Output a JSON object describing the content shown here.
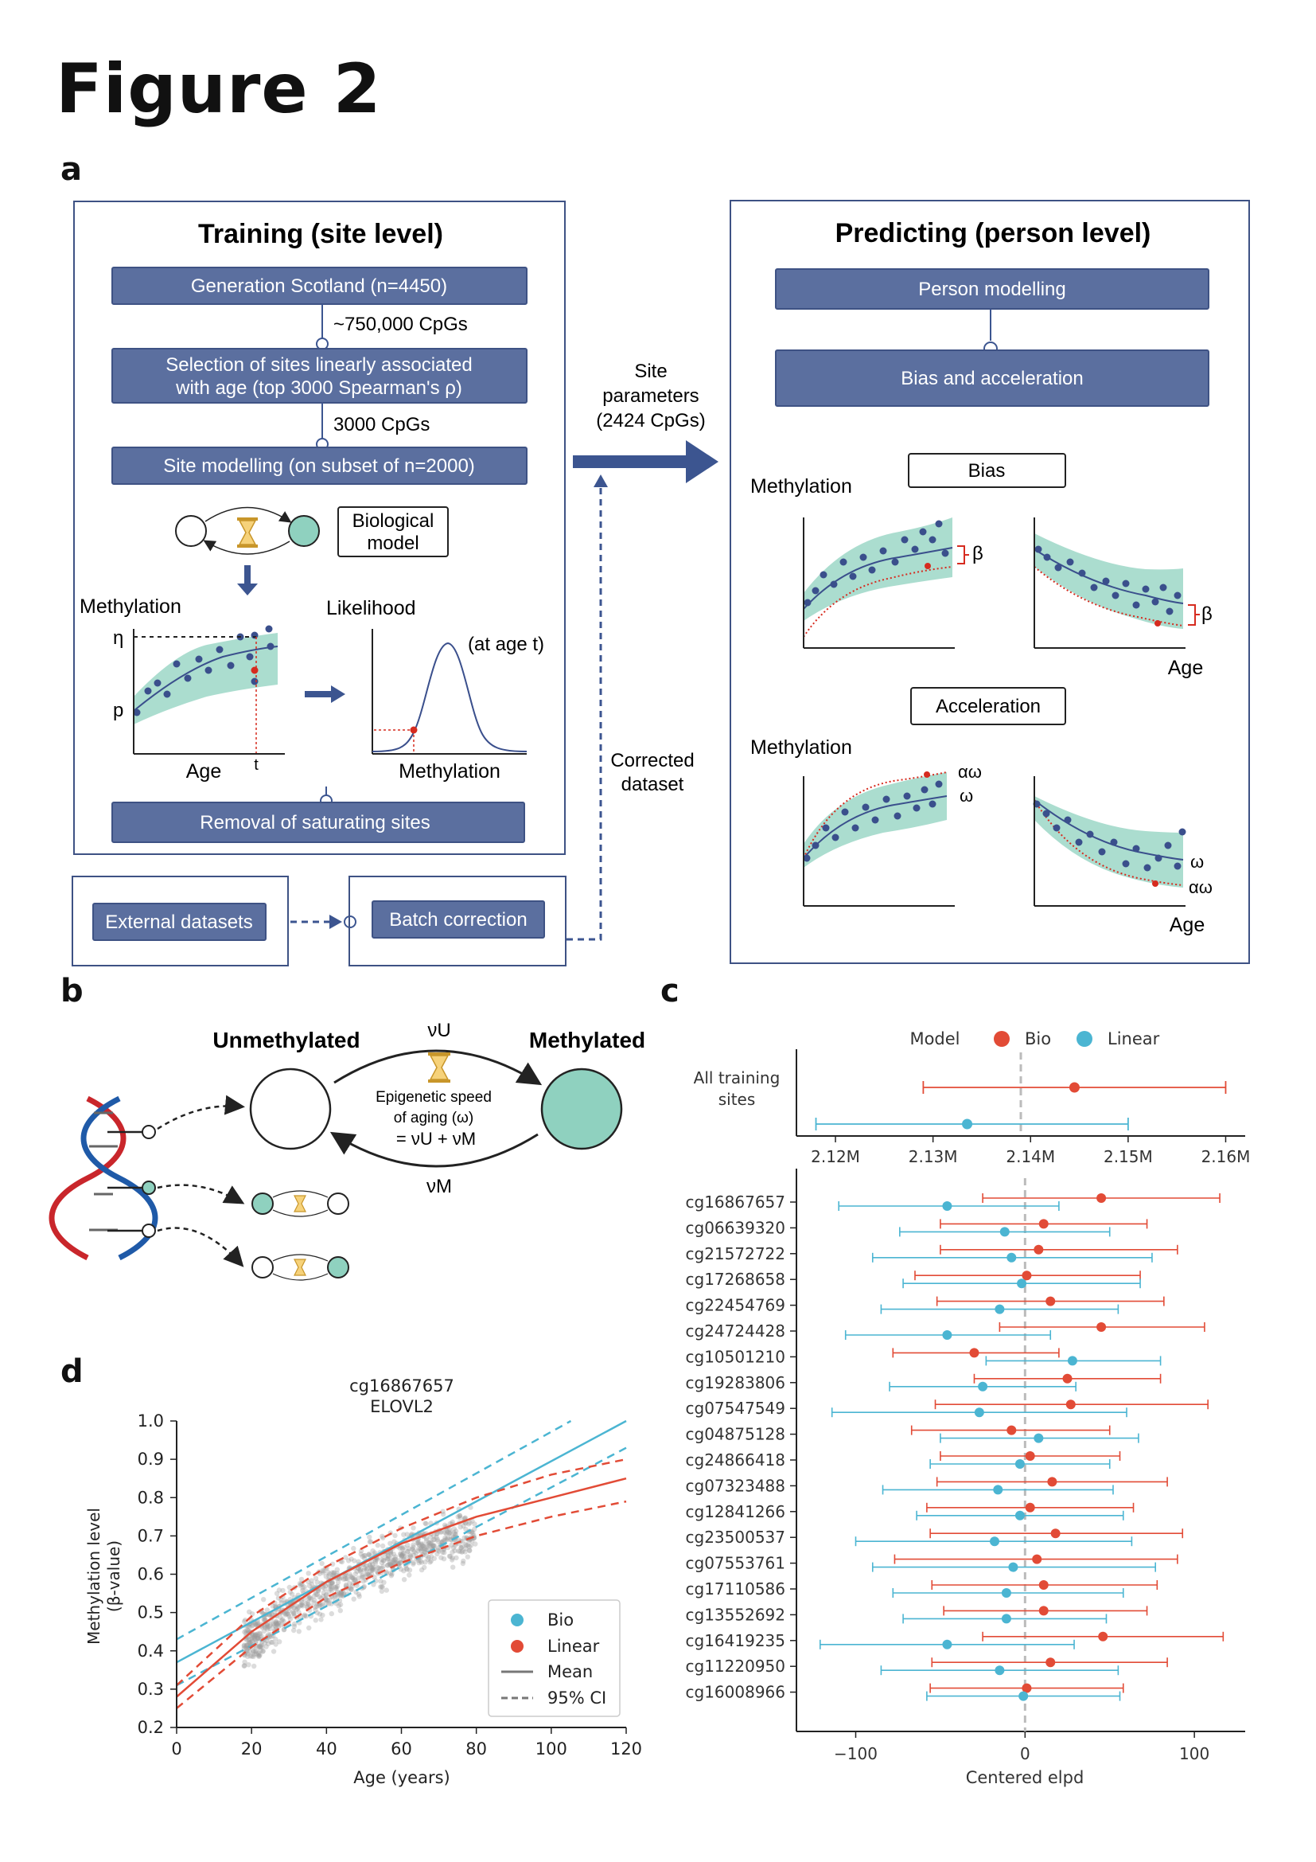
{
  "figure": {
    "title": "Figure 2"
  },
  "panels": {
    "a": "a",
    "b": "b",
    "c": "c",
    "d": "d"
  },
  "colors": {
    "box": "#5b6f9f",
    "box_border": "#3e5284",
    "band": "#8fd1bf",
    "arrow": "#3c5590",
    "bio": "#4bb5d2",
    "linear": "#e24b36",
    "dot": "#3a4f8c",
    "red": "#d62b1f"
  },
  "panel_a": {
    "training": {
      "title": "Training (site level)",
      "step1": "Generation Scotland (n=4450)",
      "count1": "~750,000 CpGs",
      "step2_line1": "Selection of sites linearly associated",
      "step2_line2": "with age (top 3000 Spearman's ρ)",
      "count2": "3000 CpGs",
      "step3": "Site modelling (on subset of n=2000)",
      "bio_model_line1": "Biological",
      "bio_model_line2": "model",
      "methylation_label": "Methylation",
      "likelihood_label": "Likelihood",
      "eta": "η",
      "p": "p",
      "t": "t",
      "age_label": "Age",
      "at_age": "(at age t)",
      "methylation_x": "Methylation",
      "step4": "Removal of saturating sites"
    },
    "external": "External datasets",
    "batch": "Batch correction",
    "site_params_line1": "Site",
    "site_params_line2": "parameters",
    "site_params_line3": "(2424 CpGs)",
    "corrected_line1": "Corrected",
    "corrected_line2": "dataset",
    "predicting": {
      "title": "Predicting (person level)",
      "step1": "Person modelling",
      "step2": "Bias and acceleration",
      "bias_label": "Bias",
      "acceleration_label": "Acceleration",
      "methylation1": "Methylation",
      "methylation2": "Methylation",
      "age1": "Age",
      "age2": "Age",
      "beta": "β",
      "omega": "ω",
      "alpha_omega": "αω"
    }
  },
  "panel_b": {
    "unmethylated": "Unmethylated",
    "methylated": "Methylated",
    "nu_u": "νU",
    "nu_m": "νM",
    "speed_line1": "Epigenetic speed",
    "speed_line2": "of aging  (ω)",
    "speed_line3": "= νU + νM"
  },
  "chart_data": [
    {
      "id": "panel_c_top",
      "type": "scatter",
      "title": "",
      "legend_title": "Model",
      "legend": [
        "Bio",
        "Linear"
      ],
      "legend_position": "top",
      "ylabel_line1": "All training",
      "ylabel_line2": "sites",
      "xticks": [
        "2.12M",
        "2.13M",
        "2.14M",
        "2.15M",
        "2.16M"
      ],
      "xlim": [
        2116000,
        2162000
      ],
      "reference_x": 2139000,
      "points": [
        {
          "model": "Bio",
          "mean": 2144500,
          "low": 2129000,
          "high": 2160000
        },
        {
          "model": "Linear",
          "mean": 2133500,
          "low": 2118000,
          "high": 2150000
        }
      ]
    },
    {
      "id": "panel_c_bottom",
      "type": "scatter",
      "xlabel": "Centered elpd",
      "xticks": [
        -100,
        0,
        100
      ],
      "xlim": [
        -135,
        130
      ],
      "reference_x": 0,
      "sites": [
        "cg16867657",
        "cg06639320",
        "cg21572722",
        "cg17268658",
        "cg22454769",
        "cg24724428",
        "cg10501210",
        "cg19283806",
        "cg07547549",
        "cg04875128",
        "cg24866418",
        "cg07323488",
        "cg12841266",
        "cg23500537",
        "cg07553761",
        "cg17110586",
        "cg13552692",
        "cg16419235",
        "cg11220950",
        "cg16008966"
      ],
      "bio": [
        {
          "mean": 45,
          "low": -25,
          "high": 115
        },
        {
          "mean": 11,
          "low": -50,
          "high": 72
        },
        {
          "mean": 8,
          "low": -50,
          "high": 90
        },
        {
          "mean": 1,
          "low": -65,
          "high": 68
        },
        {
          "mean": 15,
          "low": -52,
          "high": 82
        },
        {
          "mean": 45,
          "low": -15,
          "high": 106
        },
        {
          "mean": -30,
          "low": -78,
          "high": 20
        },
        {
          "mean": 25,
          "low": -30,
          "high": 80
        },
        {
          "mean": 27,
          "low": -53,
          "high": 108
        },
        {
          "mean": -8,
          "low": -67,
          "high": 50
        },
        {
          "mean": 3,
          "low": -50,
          "high": 56
        },
        {
          "mean": 16,
          "low": -52,
          "high": 84
        },
        {
          "mean": 3,
          "low": -58,
          "high": 64
        },
        {
          "mean": 18,
          "low": -56,
          "high": 93
        },
        {
          "mean": 7,
          "low": -77,
          "high": 90
        },
        {
          "mean": 11,
          "low": -55,
          "high": 78
        },
        {
          "mean": 11,
          "low": -48,
          "high": 72
        },
        {
          "mean": 46,
          "low": -25,
          "high": 117
        },
        {
          "mean": 15,
          "low": -55,
          "high": 84
        },
        {
          "mean": 1,
          "low": -56,
          "high": 58
        }
      ],
      "linear": [
        {
          "mean": -46,
          "low": -110,
          "high": 20
        },
        {
          "mean": -12,
          "low": -74,
          "high": 50
        },
        {
          "mean": -8,
          "low": -90,
          "high": 75
        },
        {
          "mean": -2,
          "low": -72,
          "high": 68
        },
        {
          "mean": -15,
          "low": -85,
          "high": 55
        },
        {
          "mean": -46,
          "low": -106,
          "high": 15
        },
        {
          "mean": 28,
          "low": -23,
          "high": 80
        },
        {
          "mean": -25,
          "low": -80,
          "high": 30
        },
        {
          "mean": -27,
          "low": -114,
          "high": 60
        },
        {
          "mean": 8,
          "low": -50,
          "high": 67
        },
        {
          "mean": -3,
          "low": -56,
          "high": 50
        },
        {
          "mean": -16,
          "low": -84,
          "high": 52
        },
        {
          "mean": -3,
          "low": -64,
          "high": 58
        },
        {
          "mean": -18,
          "low": -100,
          "high": 63
        },
        {
          "mean": -7,
          "low": -90,
          "high": 77
        },
        {
          "mean": -11,
          "low": -78,
          "high": 58
        },
        {
          "mean": -11,
          "low": -72,
          "high": 48
        },
        {
          "mean": -46,
          "low": -121,
          "high": 29
        },
        {
          "mean": -15,
          "low": -85,
          "high": 55
        },
        {
          "mean": -1,
          "low": -58,
          "high": 56
        }
      ]
    },
    {
      "id": "panel_d",
      "type": "scatter",
      "title_line1": "cg16867657",
      "title_line2": "ELOVL2",
      "xlabel": "Age (years)",
      "ylabel_line1": "Methylation level",
      "ylabel_line2": "(β-value)",
      "xlim": [
        0,
        120
      ],
      "ylim": [
        0.2,
        1.0
      ],
      "xticks": [
        0,
        20,
        40,
        60,
        80,
        100,
        120
      ],
      "yticks": [
        0.2,
        0.3,
        0.4,
        0.5,
        0.6,
        0.7,
        0.8,
        0.9,
        1.0
      ],
      "legend": [
        "Bio",
        "Linear",
        "Mean",
        "95% CI"
      ],
      "legend_position": "bottom-right",
      "linear_mean": [
        [
          0,
          0.37
        ],
        [
          120,
          1.0
        ]
      ],
      "linear_ci_low": [
        [
          0,
          0.31
        ],
        [
          120,
          0.93
        ]
      ],
      "linear_ci_high": [
        [
          0,
          0.43
        ],
        [
          120,
          1.08
        ]
      ],
      "bio_mean": [
        [
          0,
          0.28
        ],
        [
          20,
          0.45
        ],
        [
          40,
          0.58
        ],
        [
          60,
          0.68
        ],
        [
          80,
          0.75
        ],
        [
          100,
          0.8
        ],
        [
          120,
          0.85
        ]
      ],
      "bio_ci_low": [
        [
          0,
          0.25
        ],
        [
          20,
          0.41
        ],
        [
          40,
          0.54
        ],
        [
          60,
          0.63
        ],
        [
          80,
          0.7
        ],
        [
          100,
          0.75
        ],
        [
          120,
          0.79
        ]
      ],
      "bio_ci_high": [
        [
          0,
          0.31
        ],
        [
          20,
          0.49
        ],
        [
          40,
          0.62
        ],
        [
          60,
          0.72
        ],
        [
          80,
          0.8
        ],
        [
          100,
          0.86
        ],
        [
          120,
          0.9
        ]
      ],
      "data_age_range": [
        18,
        80
      ]
    }
  ]
}
